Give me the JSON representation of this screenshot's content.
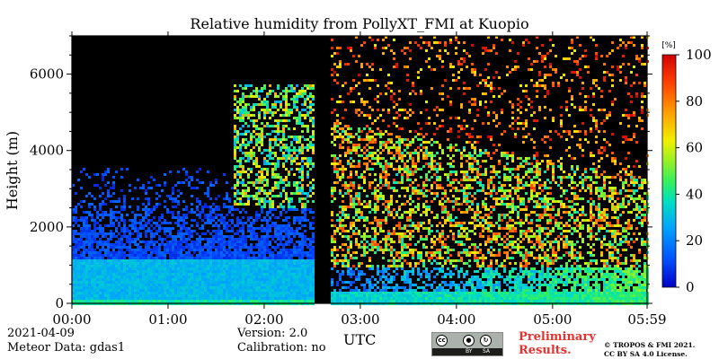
{
  "chart_data": {
    "type": "heatmap",
    "title": "Relative humidity from PollyXT_FMI at Kuopio",
    "xlabel": "UTC",
    "ylabel": "Height (m)",
    "x_ticks": [
      "00:00",
      "01:00",
      "02:00",
      "03:00",
      "04:00",
      "05:00",
      "05:59"
    ],
    "x_range": [
      "00:00",
      "05:59"
    ],
    "y_ticks": [
      0,
      2000,
      4000,
      6000
    ],
    "ylim": [
      0,
      7000
    ],
    "colorbar": {
      "unit": "[%]",
      "ticks": [
        0,
        20,
        40,
        60,
        80,
        100
      ],
      "range": [
        0,
        100
      ],
      "colormap": "jet"
    },
    "missing_data_interval": [
      "02:30",
      "02:40"
    ],
    "layers": [
      {
        "height_range": [
          0,
          1200
        ],
        "rh_range": [
          25,
          30
        ],
        "time_range": [
          "00:00",
          "02:30"
        ]
      },
      {
        "height_range": [
          1200,
          3000
        ],
        "rh_range": [
          5,
          15
        ],
        "time_range": [
          "00:00",
          "02:30"
        ]
      },
      {
        "height_range": [
          3000,
          5500
        ],
        "rh_range": [
          30,
          70
        ],
        "time_range": [
          "01:40",
          "02:30"
        ]
      },
      {
        "height_range": [
          0,
          400
        ],
        "rh_range": [
          25,
          40
        ],
        "time_range": [
          "02:40",
          "05:59"
        ]
      },
      {
        "height_range": [
          1000,
          4500
        ],
        "rh_range": [
          20,
          100
        ],
        "time_range": [
          "02:40",
          "05:59"
        ]
      }
    ]
  },
  "footer": {
    "date": "2021-04-09",
    "meteor": "Meteor Data: gdas1",
    "version": "Version: 2.0",
    "calibration": "Calibration: no",
    "preliminary_line1": "Preliminary",
    "preliminary_line2": "Results.",
    "copyright_line1": "© TROPOS & FMI 2021.",
    "copyright_line2": "CC BY SA 4.0 License.",
    "license_badge": {
      "cc": "cc",
      "by": "BY",
      "sa": "SA"
    }
  }
}
